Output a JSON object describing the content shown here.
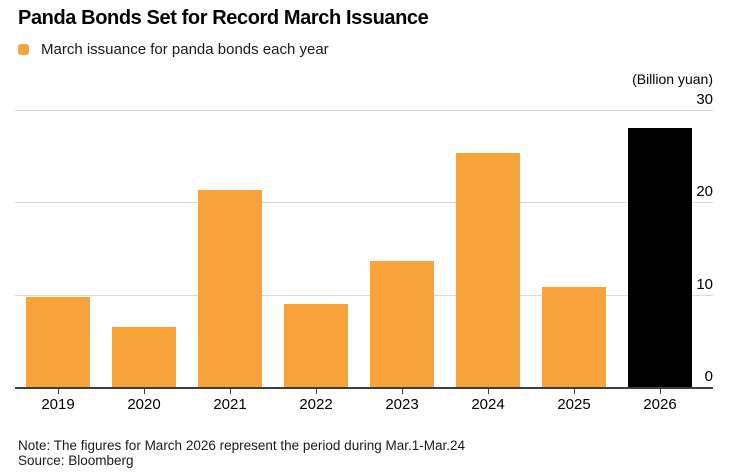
{
  "header": {
    "title": "Panda Bonds Set for Record March Issuance",
    "legend_label": "March issuance for panda bonds each year",
    "unit_label": "(Billion yuan)"
  },
  "footer": {
    "note": "Note: The figures for March 2026 represent the period during Mar.1-Mar.24",
    "source": "Source: Bloomberg"
  },
  "colors": {
    "bar_orange": "#F8A33A",
    "bar_record_black": "#000000",
    "gridline": "#D8D8D8",
    "axis": "#3D3D3D"
  },
  "chart_data": {
    "type": "bar",
    "title": "Panda Bonds Set for Record March Issuance",
    "series_name": "March issuance for panda bonds each year",
    "categories": [
      "2019",
      "2020",
      "2021",
      "2022",
      "2023",
      "2024",
      "2025",
      "2026"
    ],
    "values": [
      9.7,
      6.5,
      21.3,
      9.0,
      13.6,
      25.3,
      10.8,
      28.0
    ],
    "xlabel": "",
    "ylabel": "(Billion yuan)",
    "ylim": [
      0,
      30
    ],
    "y_ticks": [
      0,
      10,
      20,
      30
    ],
    "y_axis_side": "right",
    "grid": "horizontal",
    "legend_position": "top-left",
    "highlight_category": "2026",
    "highlight_style": "black record bar, other bars orange"
  }
}
